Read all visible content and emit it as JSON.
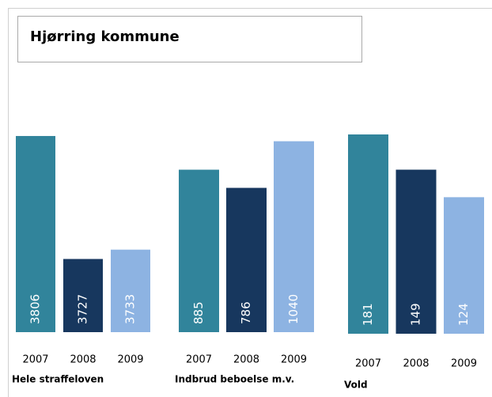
{
  "title": "Hjørring kommune",
  "chart_data": [
    {
      "type": "bar",
      "xlabel": "Hele straffeloven",
      "categories": [
        "2007",
        "2008",
        "2009"
      ],
      "values": [
        3806,
        3727,
        3733
      ],
      "colors": [
        "#31849b",
        "#17375e",
        "#8db3e2"
      ],
      "ylim": [
        3680,
        3807
      ]
    },
    {
      "type": "bar",
      "xlabel": "Indbrud beboelse m.v.",
      "categories": [
        "2007",
        "2008",
        "2009"
      ],
      "values": [
        885,
        786,
        1040
      ],
      "colors": [
        "#31849b",
        "#17375e",
        "#8db3e2"
      ],
      "ylim": [
        0,
        1077
      ]
    },
    {
      "type": "bar",
      "xlabel": "Vold",
      "categories": [
        "2007",
        "2008",
        "2009"
      ],
      "values": [
        181,
        149,
        124
      ],
      "colors": [
        "#31849b",
        "#17375e",
        "#8db3e2"
      ],
      "ylim": [
        0,
        181
      ]
    }
  ]
}
